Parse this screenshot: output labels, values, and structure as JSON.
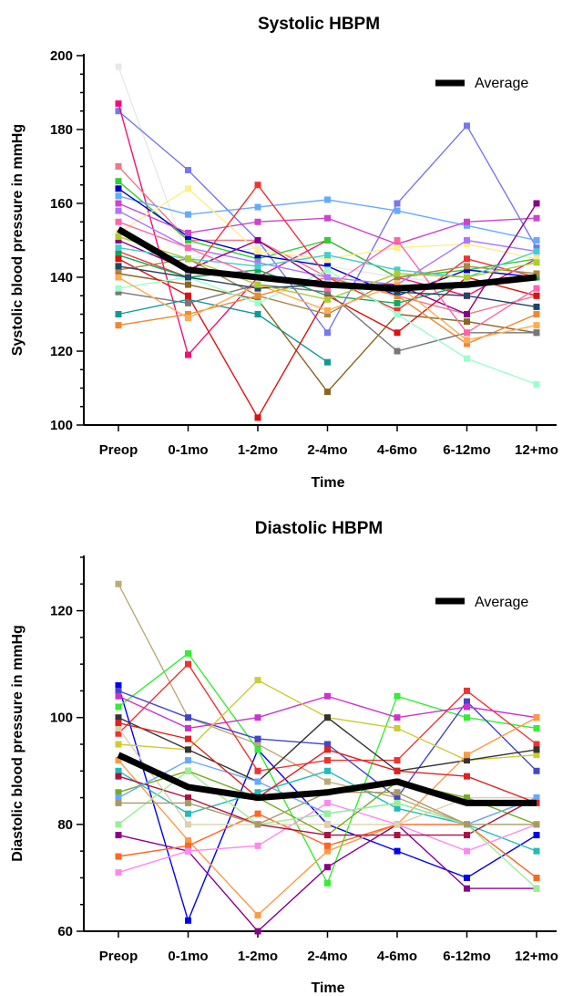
{
  "chart_data": [
    {
      "type": "line",
      "title": "Systolic HBPM",
      "xlabel": "Time",
      "ylabel": "Systolic blood pressure in mmHg",
      "categories": [
        "Preop",
        "0-1mo",
        "1-2mo",
        "2-4mo",
        "4-6mo",
        "6-12mo",
        "12+mo"
      ],
      "ylim": [
        100,
        200
      ],
      "yticks": [
        100,
        120,
        140,
        160,
        180,
        200
      ],
      "legend": {
        "label": "Average",
        "position": "top-right"
      },
      "average": [
        153,
        142,
        140,
        138,
        137,
        138,
        140
      ],
      "series": [
        {
          "color": "#e8e8e8",
          "values": [
            197,
            145,
            148,
            143,
            140,
            138,
            140
          ]
        },
        {
          "color": "#7777ee",
          "values": [
            185,
            169,
            150,
            125,
            160,
            181,
            148
          ]
        },
        {
          "color": "#ee1177",
          "values": [
            187,
            119,
            140,
            150,
            140,
            135,
            145
          ]
        },
        {
          "color": "#ee7788",
          "values": [
            170,
            150,
            150,
            140,
            135,
            130,
            135
          ]
        },
        {
          "color": "#33cc33",
          "values": [
            166,
            150,
            145,
            150,
            140,
            142,
            145
          ]
        },
        {
          "color": "#66aaff",
          "values": [
            162,
            157,
            159,
            161,
            158,
            154,
            150
          ]
        },
        {
          "color": "#0000cc",
          "values": [
            164,
            151,
            146,
            143,
            135,
            142,
            140
          ]
        },
        {
          "color": "#cc44cc",
          "values": [
            160,
            152,
            155,
            156,
            149,
            155,
            156
          ]
        },
        {
          "color": "#ffee88",
          "values": [
            152,
            164,
            147,
            145,
            148,
            149,
            145
          ]
        },
        {
          "color": "#ee3333",
          "values": [
            147,
            140,
            165,
            140,
            131,
            145,
            140
          ]
        },
        {
          "color": "#11aa55",
          "values": [
            146,
            140,
            142,
            135,
            133,
            138,
            140
          ]
        },
        {
          "color": "#119999",
          "values": [
            130,
            134,
            130,
            117,
            null,
            null,
            null
          ]
        },
        {
          "color": "#886622",
          "values": [
            141,
            138,
            134,
            109,
            130,
            128,
            125
          ]
        },
        {
          "color": "#dd1111",
          "values": [
            145,
            135,
            102,
            135,
            125,
            140,
            135
          ]
        },
        {
          "color": "#aa8844",
          "values": [
            142,
            145,
            135,
            130,
            140,
            143,
            141
          ]
        },
        {
          "color": "#ee8833",
          "values": [
            127,
            130,
            135,
            140,
            135,
            122,
            130
          ]
        },
        {
          "color": "#777777",
          "values": [
            136,
            133,
            138,
            136,
            120,
            125,
            125
          ]
        },
        {
          "color": "#aa77ff",
          "values": [
            158,
            148,
            144,
            140,
            138,
            150,
            147
          ]
        },
        {
          "color": "#99ffcc",
          "values": [
            137,
            140,
            133,
            142,
            130,
            118,
            111
          ]
        },
        {
          "color": "#880088",
          "values": [
            150,
            142,
            150,
            138,
            138,
            130,
            160
          ]
        },
        {
          "color": "#ffaa55",
          "values": [
            140,
            129,
            138,
            131,
            138,
            123,
            127
          ]
        },
        {
          "color": "#44cccc",
          "values": [
            148,
            145,
            143,
            146,
            142,
            140,
            147
          ]
        },
        {
          "color": "#ff66aa",
          "values": [
            155,
            148,
            140,
            137,
            150,
            125,
            137
          ]
        },
        {
          "color": "#224466",
          "values": [
            143,
            140,
            137,
            138,
            136,
            135,
            132
          ]
        },
        {
          "color": "#aacc33",
          "values": [
            151,
            145,
            138,
            134,
            141,
            140,
            144
          ]
        }
      ]
    },
    {
      "type": "line",
      "title": "Diastolic HBPM",
      "xlabel": "Time",
      "ylabel": "Diastolic blood pressure in mmHg",
      "categories": [
        "Preop",
        "0-1mo",
        "1-2mo",
        "2-4mo",
        "4-6mo",
        "6-12mo",
        "12+mo"
      ],
      "ylim": [
        60,
        130
      ],
      "yticks": [
        60,
        80,
        100,
        120
      ],
      "legend": {
        "label": "Average",
        "position": "top-right"
      },
      "average": [
        93,
        87,
        85,
        86,
        88,
        84,
        84
      ],
      "series": [
        {
          "color": "#bbaa77",
          "values": [
            125,
            100,
            95,
            88,
            85,
            80,
            85
          ]
        },
        {
          "color": "#0000ee",
          "values": [
            106,
            62,
            94,
            80,
            75,
            70,
            78
          ]
        },
        {
          "color": "#33ee33",
          "values": [
            102,
            112,
            94,
            69,
            104,
            100,
            98
          ]
        },
        {
          "color": "#ee3333",
          "values": [
            97,
            110,
            90,
            92,
            92,
            105,
            95
          ]
        },
        {
          "color": "#4444cc",
          "values": [
            105,
            100,
            96,
            95,
            85,
            103,
            90
          ]
        },
        {
          "color": "#cc33cc",
          "values": [
            104,
            98,
            100,
            104,
            100,
            102,
            100
          ]
        },
        {
          "color": "#cccc33",
          "values": [
            95,
            94,
            107,
            100,
            98,
            92,
            93
          ]
        },
        {
          "color": "#333333",
          "values": [
            100,
            94,
            88,
            100,
            90,
            92,
            94
          ]
        },
        {
          "color": "#880088",
          "values": [
            78,
            75,
            60,
            72,
            80,
            68,
            68
          ]
        },
        {
          "color": "#ff9944",
          "values": [
            92,
            77,
            63,
            75,
            80,
            93,
            100
          ]
        },
        {
          "color": "#ff6622",
          "values": [
            74,
            76,
            82,
            76,
            80,
            80,
            70
          ]
        },
        {
          "color": "#22bbbb",
          "values": [
            90,
            82,
            86,
            90,
            83,
            80,
            75
          ]
        },
        {
          "color": "#ff88ee",
          "values": [
            71,
            75,
            76,
            84,
            80,
            75,
            80
          ]
        },
        {
          "color": "#ddd0aa",
          "values": [
            98,
            80,
            80,
            80,
            80,
            85,
            85
          ]
        },
        {
          "color": "#77aa22",
          "values": [
            86,
            90,
            85,
            78,
            88,
            85,
            80
          ]
        },
        {
          "color": "#aa1144",
          "values": [
            89,
            85,
            80,
            78,
            78,
            78,
            85
          ]
        },
        {
          "color": "#66aaff",
          "values": [
            85,
            92,
            88,
            82,
            84,
            80,
            85
          ]
        },
        {
          "color": "#99ee99",
          "values": [
            80,
            90,
            80,
            82,
            84,
            80,
            68
          ]
        },
        {
          "color": "#dd2222",
          "values": [
            99,
            96,
            85,
            94,
            90,
            89,
            84
          ]
        },
        {
          "color": "#aa9966",
          "values": [
            84,
            84,
            80,
            86,
            86,
            80,
            80
          ]
        }
      ]
    }
  ]
}
